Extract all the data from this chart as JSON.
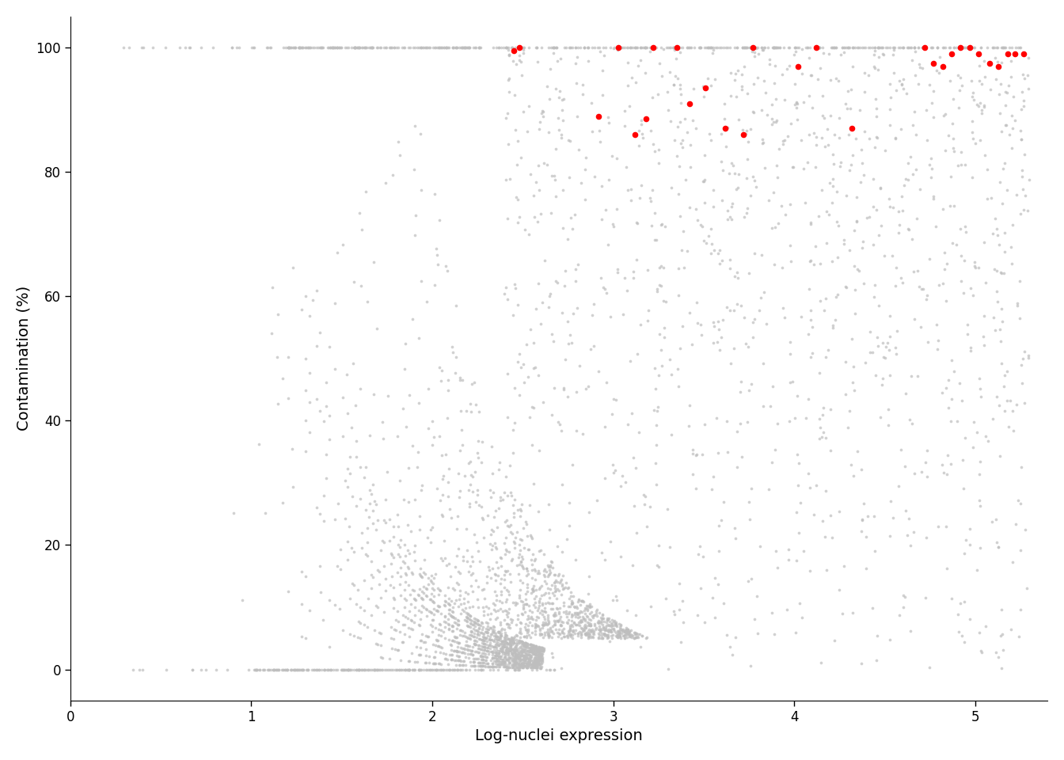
{
  "xlabel": "Log-nuclei expression",
  "ylabel": "Contamination (%)",
  "xlim": [
    0,
    5.4
  ],
  "ylim": [
    -5,
    105
  ],
  "xticks": [
    0,
    1,
    2,
    3,
    4,
    5
  ],
  "yticks": [
    0,
    20,
    40,
    60,
    80,
    100
  ],
  "gray_color": "#bebebe",
  "red_color": "#ff0000",
  "bg_color": "#ffffff",
  "point_size_gray": 7,
  "point_size_red": 30,
  "xlabel_fontsize": 14,
  "ylabel_fontsize": 14,
  "tick_fontsize": 12,
  "random_seed": 123,
  "red_x": [
    2.45,
    2.48,
    2.92,
    3.03,
    3.12,
    3.18,
    3.22,
    3.35,
    3.42,
    3.51,
    3.62,
    3.72,
    3.77,
    4.02,
    4.12,
    4.32,
    4.72,
    4.77,
    4.82,
    4.87,
    4.92,
    4.97,
    5.02,
    5.08,
    5.13,
    5.18,
    5.22,
    5.27
  ],
  "red_y": [
    99.5,
    100.0,
    89.0,
    100.0,
    86.0,
    88.5,
    100.0,
    100.0,
    91.0,
    93.5,
    87.0,
    86.0,
    100.0,
    97.0,
    100.0,
    87.0,
    100.0,
    97.5,
    97.0,
    99.0,
    100.0,
    100.0,
    99.0,
    97.5,
    97.0,
    99.0,
    99.0,
    99.0
  ]
}
